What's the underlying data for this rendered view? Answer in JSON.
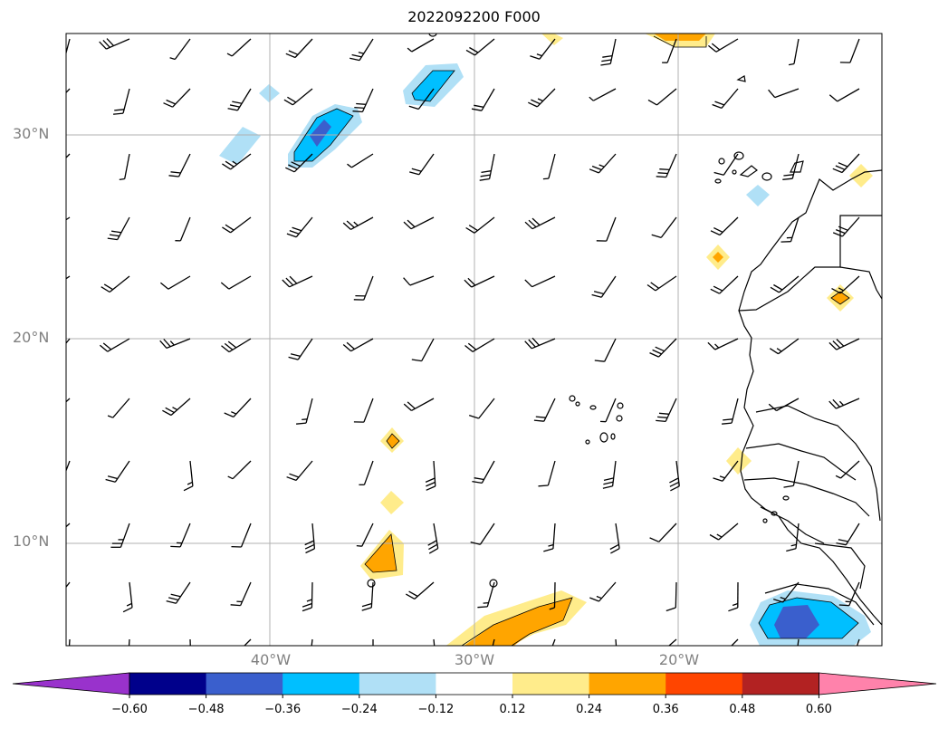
{
  "title": "2022092200 F000",
  "map": {
    "lat_labels": [
      "30°N",
      "20°N",
      "10°N"
    ],
    "lon_labels": [
      "40°W",
      "30°W",
      "20°W"
    ]
  },
  "colorbar": {
    "ticks": [
      "−0.60",
      "−0.48",
      "−0.36",
      "−0.24",
      "−0.12",
      "0.12",
      "0.24",
      "0.36",
      "0.48",
      "0.60"
    ],
    "colors": [
      "#9932CC",
      "#00008B",
      "#3A5FCD",
      "#00BFFF",
      "#B0E0F6",
      "#FFFFFF",
      "#FFEC8B",
      "#FFA500",
      "#FF4500",
      "#B22222",
      "#FF82AB"
    ]
  }
}
